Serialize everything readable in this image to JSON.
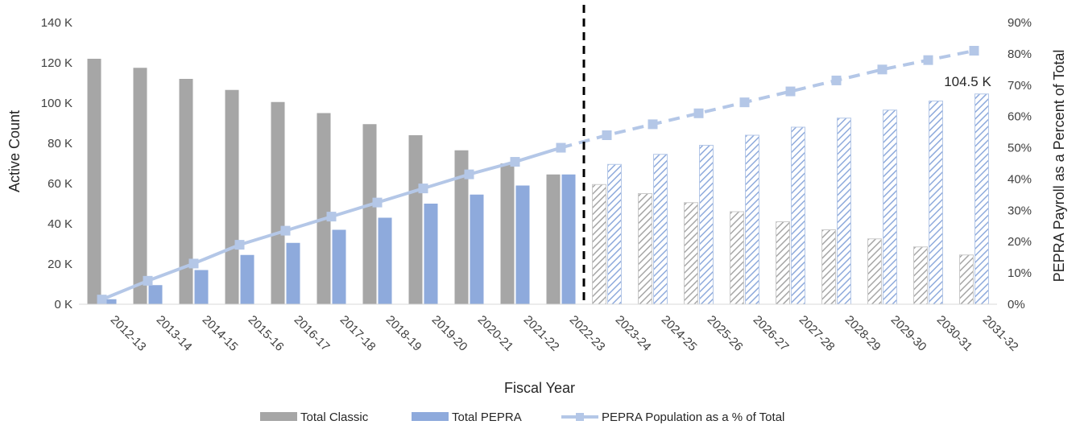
{
  "chart_data": {
    "type": "bar",
    "xlabel": "Fiscal Year",
    "ylabel": "Active Count",
    "y2label": "PEPRA Payroll as a Percent of Total",
    "ylim": [
      0,
      140000
    ],
    "y2lim": [
      0,
      0.9
    ],
    "yticks": [
      "0 K",
      "20 K",
      "40 K",
      "60 K",
      "80 K",
      "100 K",
      "120 K",
      "140 K"
    ],
    "y2ticks": [
      "0%",
      "10%",
      "20%",
      "30%",
      "40%",
      "50%",
      "60%",
      "70%",
      "80%",
      "90%"
    ],
    "categories": [
      "2012-13",
      "2013-14",
      "2014-15",
      "2015-16",
      "2016-17",
      "2017-18",
      "2018-19",
      "2019-20",
      "2020-21",
      "2021-22",
      "2022-23",
      "2023-24",
      "2024-25",
      "2025-26",
      "2026-27",
      "2027-28",
      "2028-29",
      "2029-30",
      "2030-31",
      "2031-32"
    ],
    "projection_start_category": "2023-24",
    "series": [
      {
        "name": "Total Classic",
        "kind": "bar",
        "color": "#a6a6a6",
        "values": [
          122000,
          117500,
          112000,
          106500,
          100500,
          95000,
          89500,
          84000,
          76500,
          70000,
          64500,
          59500,
          55000,
          50500,
          46000,
          41000,
          37000,
          32500,
          28500,
          24500
        ]
      },
      {
        "name": "Total PEPRA",
        "kind": "bar",
        "color": "#8eaadc",
        "values": [
          2500,
          9500,
          17000,
          24500,
          30500,
          37000,
          43000,
          50000,
          54500,
          59000,
          64500,
          69500,
          74500,
          79000,
          84000,
          88000,
          92500,
          96500,
          101000,
          104500
        ]
      },
      {
        "name": "PEPRA Population as a % of Total",
        "kind": "line",
        "axis": "secondary",
        "color": "#b4c7e7",
        "values": [
          0.015,
          0.075,
          0.13,
          0.19,
          0.235,
          0.28,
          0.325,
          0.37,
          0.415,
          0.455,
          0.5,
          0.54,
          0.575,
          0.61,
          0.645,
          0.68,
          0.715,
          0.75,
          0.78,
          0.81
        ]
      }
    ],
    "annotations": [
      {
        "category": "2031-32",
        "text": "104.5 K"
      }
    ],
    "legend": {
      "placement": "bottom-center"
    },
    "grid": false
  }
}
